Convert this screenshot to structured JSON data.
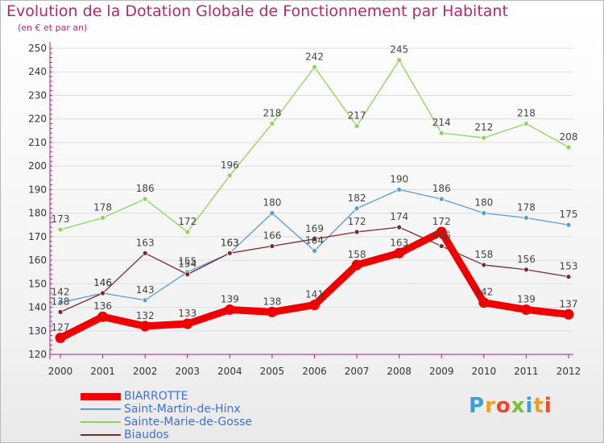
{
  "header": {
    "title": "Evolution de la Dotation Globale de Fonctionnement par Habitant",
    "subtitle": "(en € et par an)"
  },
  "logo": {
    "text": "Proxiti",
    "colors": [
      "#3aa0d8",
      "#f0a020",
      "#e84a2a",
      "#7abf3a",
      "#3aa0d8",
      "#f0a020",
      "#e84a2a"
    ]
  },
  "colors": {
    "title": "#b02a6b",
    "axis": "#aa2266",
    "grid": "#dddddd",
    "legend_text": "#3b6fe0"
  },
  "chart_data": {
    "type": "line",
    "title": "Evolution de la Dotation Globale de Fonctionnement par Habitant",
    "subtitle": "(en € et par an)",
    "xlabel": "",
    "ylabel": "",
    "categories": [
      "2000",
      "2001",
      "2002",
      "2003",
      "2004",
      "2005",
      "2006",
      "2007",
      "2008",
      "2009",
      "2010",
      "2011",
      "2012"
    ],
    "ylim": [
      120,
      250
    ],
    "yticks": [
      120,
      130,
      140,
      150,
      160,
      170,
      180,
      190,
      200,
      210,
      220,
      230,
      240,
      250
    ],
    "grid": "horizontal",
    "legend_position": "bottom-left",
    "series": [
      {
        "name": "Sainte-Marie-de-Gosse",
        "color": "#8ed35a",
        "values": [
          173,
          178,
          186,
          172,
          196,
          218,
          242,
          217,
          245,
          214,
          212,
          218,
          208
        ]
      },
      {
        "name": "Saint-Martin-de-Hinx",
        "color": "#5b9bd0",
        "values": [
          142,
          146,
          143,
          155,
          163,
          180,
          164,
          182,
          190,
          186,
          180,
          178,
          175
        ]
      },
      {
        "name": "Biaudos",
        "color": "#7a2a2a",
        "values": [
          138,
          146,
          163,
          154,
          163,
          166,
          169,
          172,
          174,
          166,
          158,
          156,
          153
        ]
      },
      {
        "name": "BIARROTTE",
        "color": "#ee0000",
        "values": [
          127,
          136,
          132,
          133,
          139,
          138,
          141,
          158,
          163,
          172,
          142,
          139,
          137
        ]
      }
    ],
    "legend": [
      "BIARROTTE",
      "Saint-Martin-de-Hinx",
      "Sainte-Marie-de-Gosse",
      "Biaudos"
    ]
  }
}
